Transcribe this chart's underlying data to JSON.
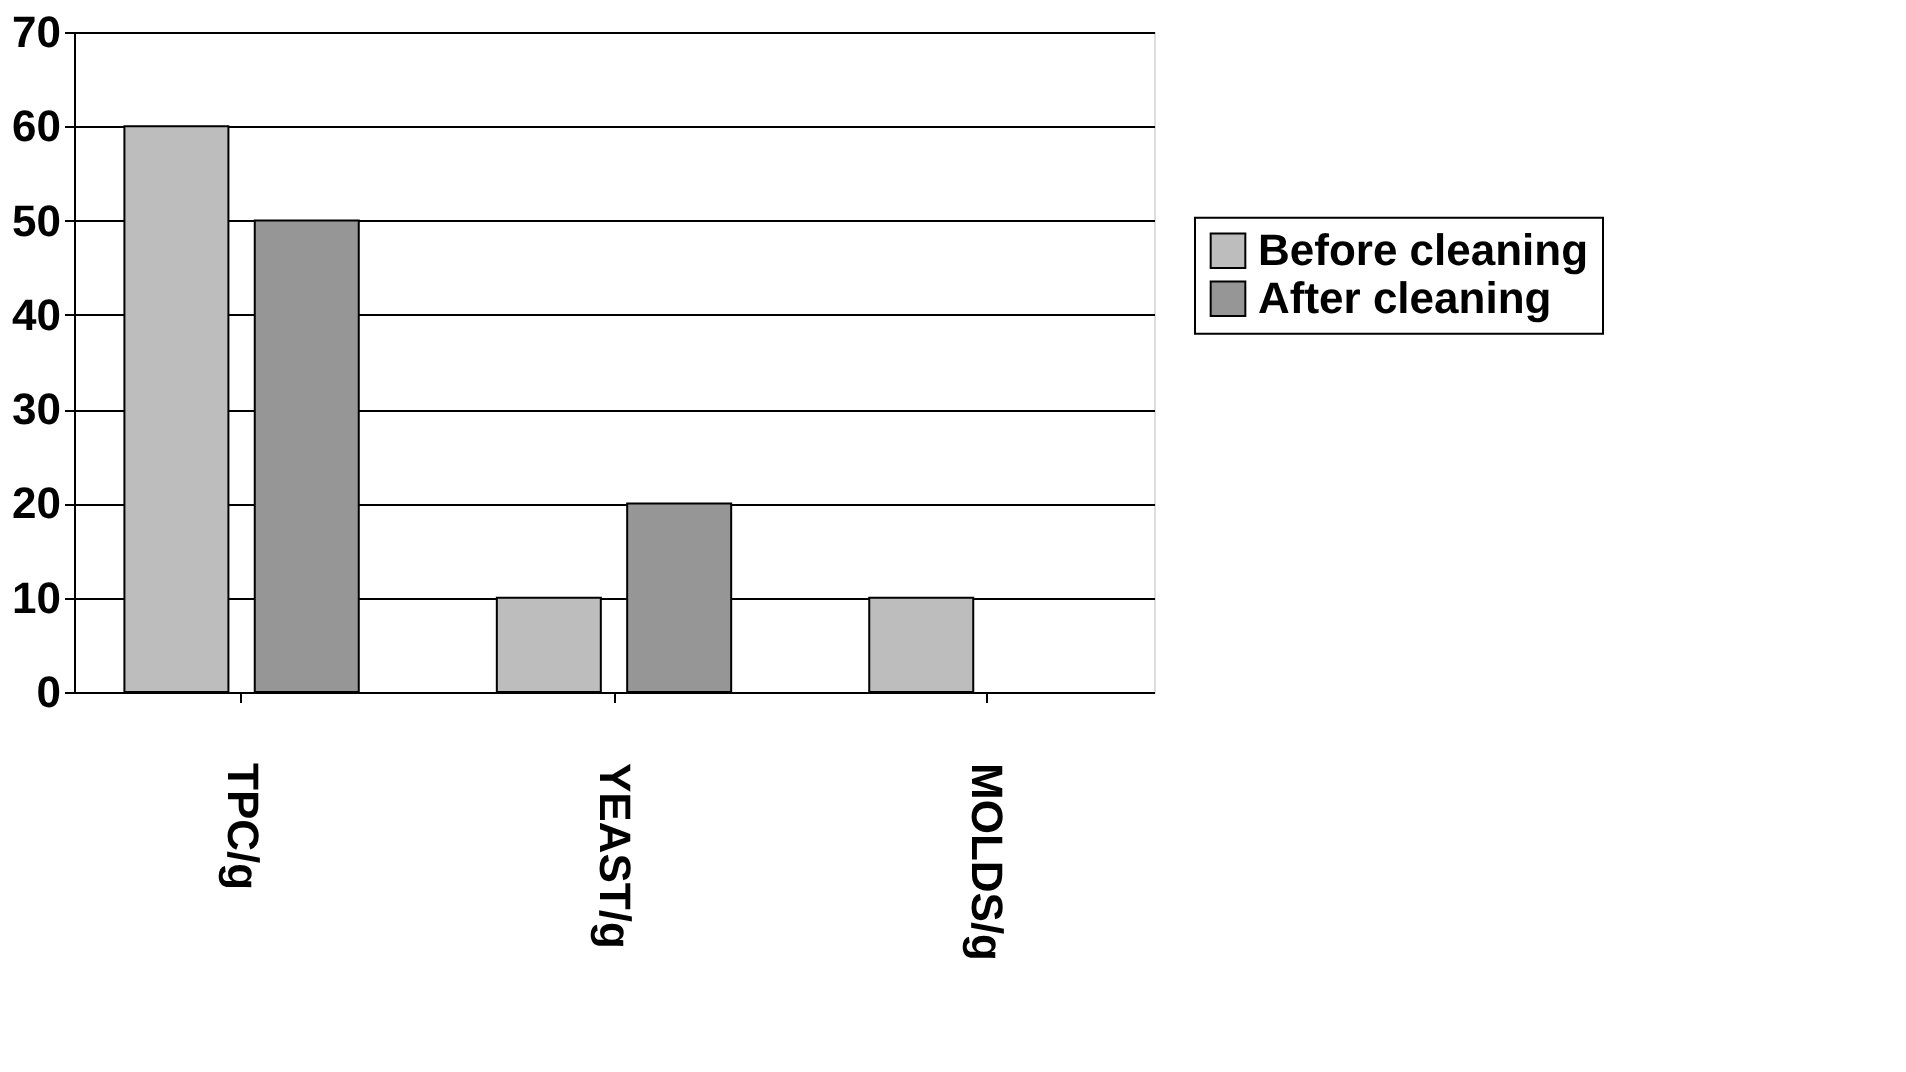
{
  "chart_data": {
    "type": "bar",
    "categories": [
      "TPC/g",
      "YEAST/g",
      "MOLDS/g"
    ],
    "series": [
      {
        "name": "Before cleaning",
        "color": "#bdbdbd",
        "values": [
          60,
          10,
          10
        ]
      },
      {
        "name": "After cleaning",
        "color": "#969696",
        "values": [
          50,
          20,
          null
        ]
      }
    ],
    "ylim": [
      0,
      70
    ],
    "yticks": [
      0,
      10,
      20,
      30,
      40,
      50,
      60,
      70
    ],
    "grid": "y",
    "legend": "right"
  }
}
